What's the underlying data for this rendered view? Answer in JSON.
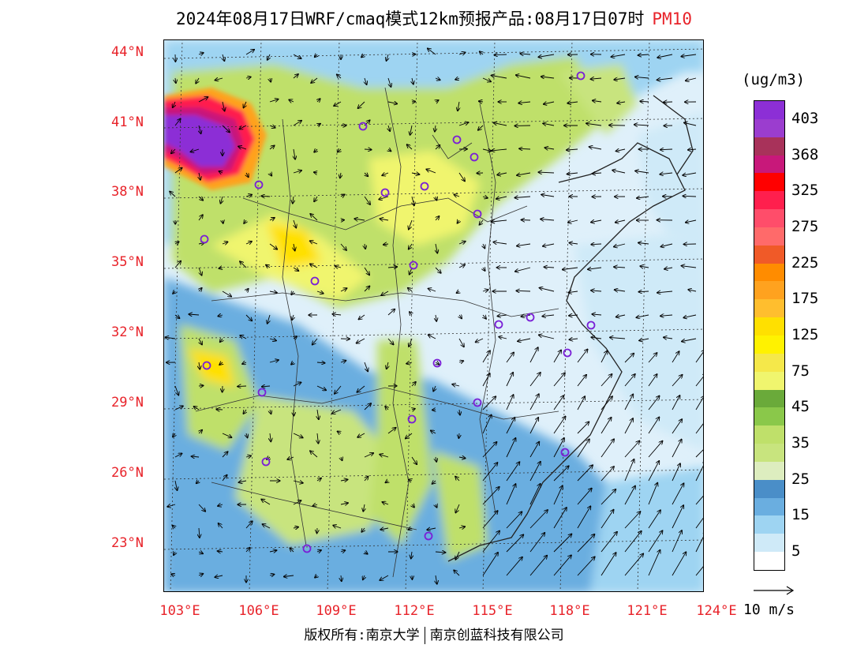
{
  "title": {
    "text": "2024年08月17日WRF/cmaq模式12km预报产品:08月17日07时",
    "variable": "PM10"
  },
  "latitude_labels": [
    "44°N",
    "41°N",
    "38°N",
    "35°N",
    "32°N",
    "29°N",
    "26°N",
    "23°N"
  ],
  "longitude_labels": [
    "103°E",
    "106°E",
    "109°E",
    "112°E",
    "115°E",
    "118°E",
    "121°E",
    "124°E"
  ],
  "colorbar": {
    "unit": "(ug/m3)",
    "labels": [
      "403",
      "368",
      "325",
      "275",
      "225",
      "175",
      "125",
      "75",
      "45",
      "35",
      "25",
      "15",
      "5"
    ],
    "colors": [
      "#8c2fd6",
      "#9b3dcf",
      "#a8325a",
      "#c8187a",
      "#ff0000",
      "#ff1f4d",
      "#ff4d6a",
      "#ff6a6a",
      "#f05a28",
      "#ff8c00",
      "#ffa21f",
      "#ffbe2e",
      "#ffe000",
      "#fff200",
      "#f5e84a",
      "#f0f56e",
      "#6aaa3a",
      "#8ac84a",
      "#bfe06a",
      "#c8e47e",
      "#ddedbf",
      "#4a8ec8",
      "#6aaee0",
      "#9ed4f2",
      "#cfeaf8",
      "#ffffff"
    ]
  },
  "wind_reference": {
    "label": "10 m/s"
  },
  "cities": [
    "marker",
    "marker",
    "marker",
    "marker",
    "marker",
    "marker",
    "marker",
    "marker",
    "marker",
    "marker",
    "marker",
    "marker",
    "marker",
    "marker",
    "marker",
    "marker",
    "marker",
    "marker",
    "marker",
    "marker",
    "marker",
    "marker",
    "marker",
    "marker"
  ],
  "footer": {
    "left": "版权所有:南京大学",
    "right": "南京创蓝科技有限公司"
  }
}
